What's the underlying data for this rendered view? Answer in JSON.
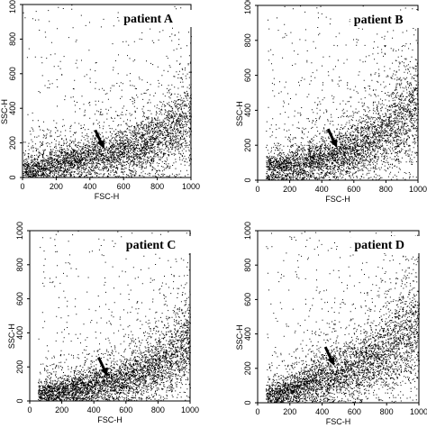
{
  "chart_data": [
    {
      "type": "scatter",
      "title": "patient A",
      "xlabel": "FSC-H",
      "ylabel": "SSC-H",
      "xlim": [
        0,
        1000
      ],
      "ylim": [
        0,
        1000
      ],
      "xticks": [
        "0",
        "200",
        "400",
        "600",
        "800",
        "1000"
      ],
      "yticks": [
        "0",
        "200",
        "400",
        "600",
        "800",
        "1000"
      ],
      "x_start": 0,
      "band": [
        [
          0,
          40
        ],
        [
          200,
          75
        ],
        [
          400,
          110
        ],
        [
          600,
          150
        ],
        [
          800,
          210
        ],
        [
          1000,
          320
        ]
      ],
      "arrow_target": [
        480,
        170
      ],
      "grid": false
    },
    {
      "type": "scatter",
      "title": "patient B",
      "xlabel": "FSC-H",
      "ylabel": "SSC-H",
      "xlim": [
        0,
        1000
      ],
      "ylim": [
        0,
        1000
      ],
      "xticks": [
        "0",
        "200",
        "400",
        "600",
        "800",
        "1000"
      ],
      "yticks": [
        "0",
        "200",
        "400",
        "600",
        "800",
        "1000"
      ],
      "x_start": 50,
      "band": [
        [
          50,
          60
        ],
        [
          200,
          80
        ],
        [
          400,
          115
        ],
        [
          600,
          170
        ],
        [
          800,
          260
        ],
        [
          1000,
          420
        ]
      ],
      "arrow_target": [
        490,
        190
      ],
      "grid": false
    },
    {
      "type": "scatter",
      "title": "patient C",
      "xlabel": "FSC-H",
      "ylabel": "SSC-H",
      "xlim": [
        0,
        1000
      ],
      "ylim": [
        0,
        1000
      ],
      "xticks": [
        "0",
        "200",
        "400",
        "600",
        "800",
        "1000"
      ],
      "yticks": [
        "0",
        "200",
        "400",
        "600",
        "800",
        "1000"
      ],
      "x_start": 50,
      "band": [
        [
          50,
          45
        ],
        [
          200,
          60
        ],
        [
          400,
          90
        ],
        [
          600,
          125
        ],
        [
          800,
          200
        ],
        [
          1000,
          340
        ]
      ],
      "arrow_target": [
        480,
        150
      ],
      "grid": false
    },
    {
      "type": "scatter",
      "title": "patient D",
      "xlabel": "FSC-H",
      "ylabel": "SSC-H",
      "xlim": [
        0,
        1000
      ],
      "ylim": [
        0,
        1000
      ],
      "xticks": [
        "0",
        "200",
        "400",
        "600",
        "800",
        "1000"
      ],
      "yticks": [
        "0",
        "200",
        "400",
        "600",
        "800",
        "1000"
      ],
      "x_start": 50,
      "band": [
        [
          50,
          40
        ],
        [
          200,
          70
        ],
        [
          400,
          140
        ],
        [
          600,
          190
        ],
        [
          800,
          280
        ],
        [
          1000,
          420
        ]
      ],
      "arrow_target": [
        470,
        220
      ],
      "grid": false
    }
  ]
}
